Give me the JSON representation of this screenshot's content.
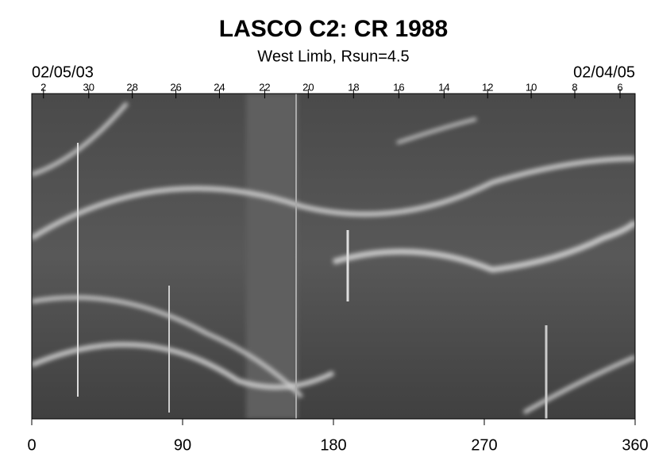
{
  "chart_data": {
    "type": "image",
    "title": "LASCO C2: CR 1988",
    "subtitle": "West Limb, Rsun=4.5",
    "start_label": "02/05/03",
    "end_label": "02/04/05",
    "xlim": [
      0,
      360
    ],
    "xticks": [
      0,
      90,
      180,
      270,
      360
    ],
    "top_ticks": [
      {
        "value": 7,
        "label": "2"
      },
      {
        "value": 34,
        "label": "30"
      },
      {
        "value": 60,
        "label": "28"
      },
      {
        "value": 86,
        "label": "26"
      },
      {
        "value": 112,
        "label": "24"
      },
      {
        "value": 139,
        "label": "22"
      },
      {
        "value": 165,
        "label": "20"
      },
      {
        "value": 192,
        "label": "18"
      },
      {
        "value": 219,
        "label": "16"
      },
      {
        "value": 246,
        "label": "14"
      },
      {
        "value": 272,
        "label": "12"
      },
      {
        "value": 298,
        "label": "10"
      },
      {
        "value": 324,
        "label": "8"
      },
      {
        "value": 351,
        "label": "6"
      }
    ]
  }
}
